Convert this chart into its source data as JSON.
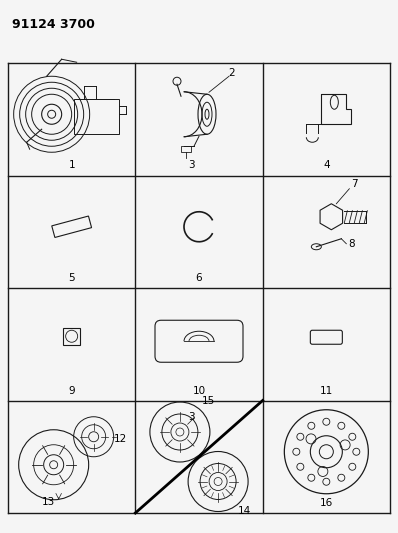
{
  "title": "91124 3700",
  "bg_color": "#f5f5f5",
  "grid_rows": 4,
  "grid_cols": 3,
  "line_color": "#1a1a1a",
  "text_color": "#000000",
  "figsize": [
    3.98,
    5.33
  ],
  "dpi": 100,
  "grid_lw": 1.0,
  "cell_label_fontsize": 7.5
}
